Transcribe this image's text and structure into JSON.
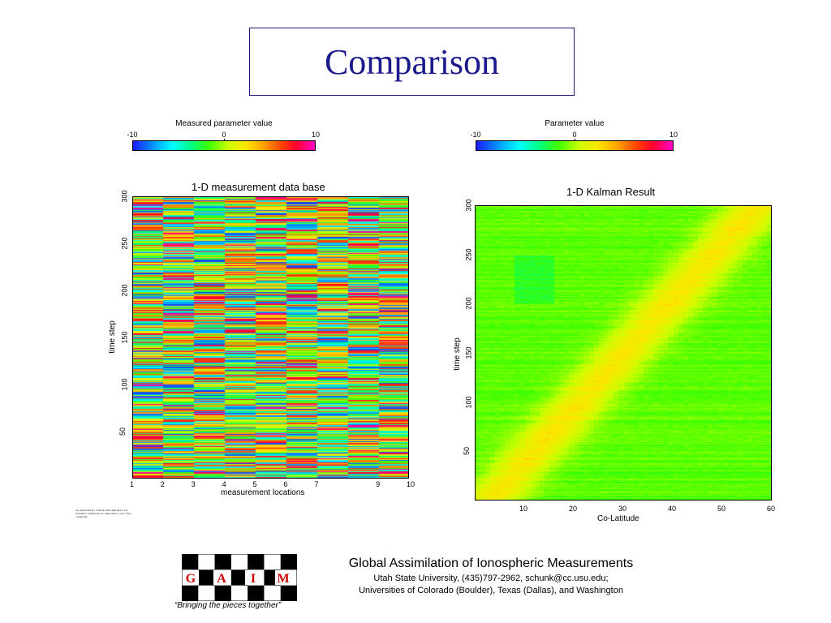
{
  "title": "Comparison",
  "left_colorbar": {
    "label": "Measured parameter value",
    "min": "-10",
    "mid": "0",
    "max": "10"
  },
  "right_colorbar": {
    "label": "Parameter value",
    "min": "-10",
    "mid": "0",
    "max": "10"
  },
  "chart_data": [
    {
      "type": "heatmap",
      "title": "1-D measurement data base",
      "xlabel": "measurement locations",
      "ylabel": "time step",
      "xticks": [
        "1",
        "2",
        "3",
        "4",
        "5",
        "6",
        "7",
        "9",
        "10"
      ],
      "yticks": [
        "50",
        "100",
        "150",
        "200",
        "250",
        "300"
      ],
      "xlim": [
        1,
        10
      ],
      "ylim": [
        0,
        300
      ],
      "color_range": [
        -10,
        10
      ]
    },
    {
      "type": "heatmap",
      "title": "1-D Kalman Result",
      "xlabel": "Co-Latitude",
      "ylabel": "time step",
      "xticks": [
        "10",
        "20",
        "30",
        "40",
        "50",
        "60"
      ],
      "yticks": [
        "50",
        "100",
        "150",
        "200",
        "250",
        "300"
      ],
      "xlim": [
        0,
        60
      ],
      "ylim": [
        0,
        300
      ],
      "color_range": [
        -10,
        10
      ]
    }
  ],
  "tiny_text": "run: kalman1d.pro / Kalman filter data base / 1-D simulation / GAIM test run / date stamp / user / host / output file",
  "logo": {
    "letters": [
      "G",
      "A",
      "I",
      "M"
    ],
    "tagline": "“Bringing the pieces together”"
  },
  "footer": {
    "line1": "Global Assimilation of Ionospheric Measurements",
    "line2": "Utah State University, (435)797-2962, schunk@cc.usu.edu;",
    "line3": "Universities of Colorado (Boulder), Texas (Dallas), and Washington"
  }
}
